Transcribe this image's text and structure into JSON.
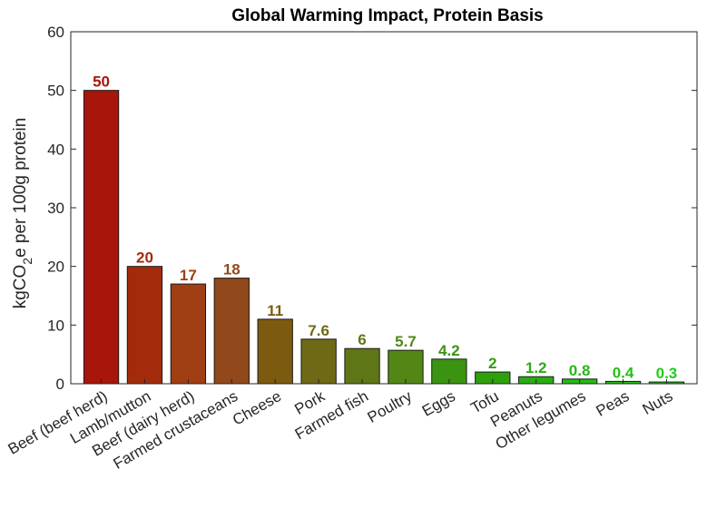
{
  "chart_data": {
    "type": "bar",
    "title": "Global Warming Impact, Protein Basis",
    "ylabel_parts": [
      "kgCO",
      "2",
      "e per 100g protein"
    ],
    "xlabel": "",
    "ylim": [
      0,
      60
    ],
    "yticks": [
      0,
      10,
      20,
      30,
      40,
      50,
      60
    ],
    "grid": false,
    "categories": [
      "Beef (beef herd)",
      "Lamb/mutton",
      "Beef (dairy herd)",
      "Farmed crustaceans",
      "Cheese",
      "Pork",
      "Farmed fish",
      "Poultry",
      "Eggs",
      "Tofu",
      "Peanuts",
      "Other legumes",
      "Peas",
      "Nuts"
    ],
    "values": [
      50,
      20,
      17,
      18,
      11,
      7.6,
      6,
      5.7,
      4.2,
      2,
      1.2,
      0.8,
      0.4,
      0.3
    ],
    "data_labels": [
      "50",
      "20",
      "17",
      "18",
      "11",
      "7.6",
      "6",
      "5.7",
      "4.2",
      "2",
      "1.2",
      "0.8",
      "0.4",
      "0.3"
    ],
    "colors": [
      "#a8150a",
      "#a32a0b",
      "#a03f14",
      "#91481b",
      "#7c5a0f",
      "#6f6815",
      "#5f7616",
      "#528716",
      "#3b9312",
      "#2ea00c",
      "#2aab14",
      "#28b817",
      "#24bf16",
      "#1fcd19"
    ]
  }
}
